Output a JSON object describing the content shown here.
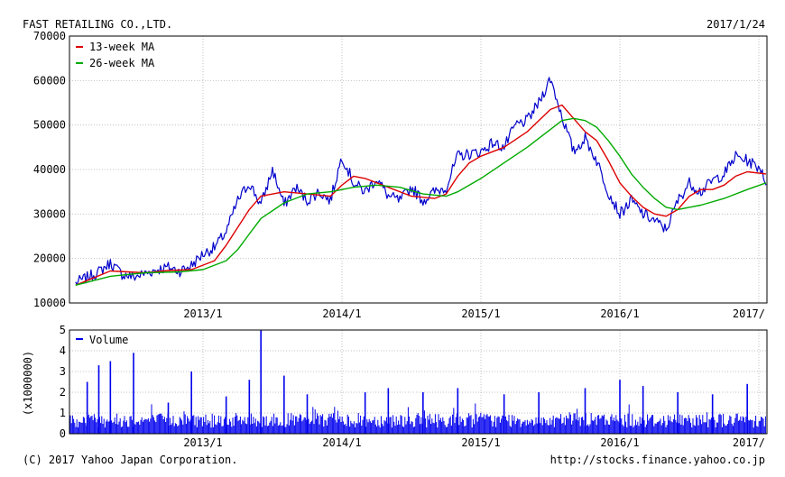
{
  "company": "FAST RETAILING CO.,LTD.",
  "date": "2017/1/24",
  "footer": {
    "copyright": "(C) 2017 Yahoo Japan Corporation.",
    "source_url": "http://stocks.finance.yahoo.co.jp"
  },
  "colors": {
    "price": "#0000cc",
    "ma13": "#dd0000",
    "ma26": "#00aa00",
    "volume": "#0000ee",
    "frame": "#000000",
    "grid": "#c0c0c0"
  },
  "chart_data": [
    {
      "type": "line",
      "title": "",
      "x_ticks": [
        "2013/1",
        "2014/1",
        "2015/1",
        "2016/1",
        "2017/"
      ],
      "x_range": [
        "2012-02",
        "2017-01-24"
      ],
      "y_ticks": [
        70000,
        60000,
        50000,
        40000,
        30000,
        20000,
        10000
      ],
      "ylim": [
        10000,
        70000
      ],
      "grid": "dotted",
      "legend_position": "top-left",
      "series": [
        {
          "name": "",
          "color": "#0000cc",
          "points": [
            [
              "2012-02",
              14500
            ],
            [
              "2012-04",
              17000
            ],
            [
              "2012-05",
              19000
            ],
            [
              "2012-06",
              16500
            ],
            [
              "2012-07",
              15800
            ],
            [
              "2012-09",
              17500
            ],
            [
              "2012-10",
              18000
            ],
            [
              "2012-11",
              17200
            ],
            [
              "2012-12",
              18500
            ],
            [
              "2013-01",
              21000
            ],
            [
              "2013-02",
              22500
            ],
            [
              "2013-03",
              26000
            ],
            [
              "2013-04",
              33000
            ],
            [
              "2013-05",
              37000
            ],
            [
              "2013-06",
              32000
            ],
            [
              "2013-07",
              40000
            ],
            [
              "2013-08",
              32000
            ],
            [
              "2013-09",
              36000
            ],
            [
              "2013-10",
              33000
            ],
            [
              "2013-11",
              35000
            ],
            [
              "2013-12",
              33000
            ],
            [
              "2014-01",
              43000
            ],
            [
              "2014-02",
              37000
            ],
            [
              "2014-03",
              35000
            ],
            [
              "2014-04",
              38000
            ],
            [
              "2014-05",
              34000
            ],
            [
              "2014-06",
              33000
            ],
            [
              "2014-07",
              36000
            ],
            [
              "2014-08",
              33000
            ],
            [
              "2014-09",
              35000
            ],
            [
              "2014-10",
              36000
            ],
            [
              "2014-11",
              43000
            ],
            [
              "2014-12",
              43500
            ],
            [
              "2015-01",
              44000
            ],
            [
              "2015-02",
              46000
            ],
            [
              "2015-03",
              45000
            ],
            [
              "2015-04",
              50000
            ],
            [
              "2015-05",
              51000
            ],
            [
              "2015-06",
              55000
            ],
            [
              "2015-07",
              60500
            ],
            [
              "2015-08",
              52000
            ],
            [
              "2015-09",
              44000
            ],
            [
              "2015-10",
              47000
            ],
            [
              "2015-11",
              42000
            ],
            [
              "2015-12",
              35000
            ],
            [
              "2016-01",
              30000
            ],
            [
              "2016-02",
              33000
            ],
            [
              "2016-03",
              30000
            ],
            [
              "2016-04",
              28500
            ],
            [
              "2016-05",
              26500
            ],
            [
              "2016-06",
              33000
            ],
            [
              "2016-07",
              37000
            ],
            [
              "2016-08",
              35000
            ],
            [
              "2016-09",
              37500
            ],
            [
              "2016-10",
              39000
            ],
            [
              "2016-11",
              43000
            ],
            [
              "2016-12",
              42000
            ],
            [
              "2017-01-10",
              40000
            ],
            [
              "2017-01-24",
              36500
            ]
          ]
        },
        {
          "name": "13-week MA",
          "color": "#dd0000",
          "points": [
            [
              "2012-02",
              14000
            ],
            [
              "2012-05",
              17200
            ],
            [
              "2012-08",
              16800
            ],
            [
              "2012-10",
              17300
            ],
            [
              "2012-12",
              17500
            ],
            [
              "2013-02",
              19500
            ],
            [
              "2013-03",
              23000
            ],
            [
              "2013-04",
              27000
            ],
            [
              "2013-05",
              31000
            ],
            [
              "2013-06",
              34000
            ],
            [
              "2013-08",
              35000
            ],
            [
              "2013-10",
              34500
            ],
            [
              "2013-12",
              34000
            ],
            [
              "2014-01",
              36500
            ],
            [
              "2014-02",
              38500
            ],
            [
              "2014-03",
              38000
            ],
            [
              "2014-05",
              36000
            ],
            [
              "2014-07",
              34000
            ],
            [
              "2014-09",
              33500
            ],
            [
              "2014-10",
              34500
            ],
            [
              "2014-11",
              38500
            ],
            [
              "2014-12",
              41500
            ],
            [
              "2015-01",
              43000
            ],
            [
              "2015-03",
              45000
            ],
            [
              "2015-05",
              48500
            ],
            [
              "2015-07",
              53500
            ],
            [
              "2015-08",
              54500
            ],
            [
              "2015-09",
              51500
            ],
            [
              "2015-10",
              48500
            ],
            [
              "2015-11",
              46500
            ],
            [
              "2015-12",
              42000
            ],
            [
              "2016-01",
              37000
            ],
            [
              "2016-02",
              34000
            ],
            [
              "2016-03",
              31500
            ],
            [
              "2016-04",
              30000
            ],
            [
              "2016-05",
              29500
            ],
            [
              "2016-06",
              31000
            ],
            [
              "2016-07",
              34000
            ],
            [
              "2016-08",
              35500
            ],
            [
              "2016-09",
              35500
            ],
            [
              "2016-10",
              36500
            ],
            [
              "2016-11",
              38500
            ],
            [
              "2016-12",
              39500
            ],
            [
              "2017-01-24",
              39000
            ]
          ]
        },
        {
          "name": "26-week MA",
          "color": "#00aa00",
          "points": [
            [
              "2012-02",
              14000
            ],
            [
              "2012-05",
              16000
            ],
            [
              "2012-08",
              16800
            ],
            [
              "2012-11",
              17000
            ],
            [
              "2013-01",
              17500
            ],
            [
              "2013-03",
              19500
            ],
            [
              "2013-04",
              22000
            ],
            [
              "2013-05",
              25500
            ],
            [
              "2013-06",
              29000
            ],
            [
              "2013-08",
              32500
            ],
            [
              "2013-10",
              34500
            ],
            [
              "2013-12",
              35000
            ],
            [
              "2014-02",
              36000
            ],
            [
              "2014-04",
              36500
            ],
            [
              "2014-06",
              36000
            ],
            [
              "2014-08",
              34500
            ],
            [
              "2014-10",
              34000
            ],
            [
              "2014-11",
              35000
            ],
            [
              "2015-01",
              38000
            ],
            [
              "2015-03",
              41500
            ],
            [
              "2015-05",
              45000
            ],
            [
              "2015-07",
              49000
            ],
            [
              "2015-08",
              51000
            ],
            [
              "2015-09",
              51500
            ],
            [
              "2015-10",
              51000
            ],
            [
              "2015-11",
              49500
            ],
            [
              "2015-12",
              46500
            ],
            [
              "2016-01",
              43000
            ],
            [
              "2016-02",
              39000
            ],
            [
              "2016-03",
              36000
            ],
            [
              "2016-04",
              33500
            ],
            [
              "2016-05",
              31500
            ],
            [
              "2016-06",
              31000
            ],
            [
              "2016-08",
              32000
            ],
            [
              "2016-10",
              33500
            ],
            [
              "2016-12",
              35500
            ],
            [
              "2017-01-24",
              37000
            ]
          ]
        }
      ]
    },
    {
      "type": "bar",
      "title": "",
      "series_name": "Volume",
      "ylabel": "(x1000000)",
      "y_ticks": [
        5,
        4,
        3,
        2,
        1,
        0
      ],
      "ylim": [
        0,
        5
      ],
      "x_ticks": [
        "2013/1",
        "2014/1",
        "2015/1",
        "2016/1",
        "2017/"
      ],
      "typical_range": [
        0.3,
        1.0
      ],
      "spikes": [
        [
          "2012-03",
          2.5
        ],
        [
          "2012-04",
          3.3
        ],
        [
          "2012-05",
          3.5
        ],
        [
          "2012-07",
          3.9
        ],
        [
          "2012-10",
          1.5
        ],
        [
          "2012-12",
          3.0
        ],
        [
          "2013-03",
          1.8
        ],
        [
          "2013-05",
          2.6
        ],
        [
          "2013-06",
          5.0
        ],
        [
          "2013-08",
          2.8
        ],
        [
          "2013-10",
          1.9
        ],
        [
          "2014-03",
          2.0
        ],
        [
          "2014-05",
          2.2
        ],
        [
          "2014-08",
          2.0
        ],
        [
          "2014-11",
          2.2
        ],
        [
          "2015-03",
          1.9
        ],
        [
          "2015-06",
          2.0
        ],
        [
          "2015-10",
          2.2
        ],
        [
          "2016-01",
          2.6
        ],
        [
          "2016-03",
          2.3
        ],
        [
          "2016-06",
          2.0
        ],
        [
          "2016-09",
          1.9
        ],
        [
          "2016-12",
          2.4
        ]
      ]
    }
  ]
}
